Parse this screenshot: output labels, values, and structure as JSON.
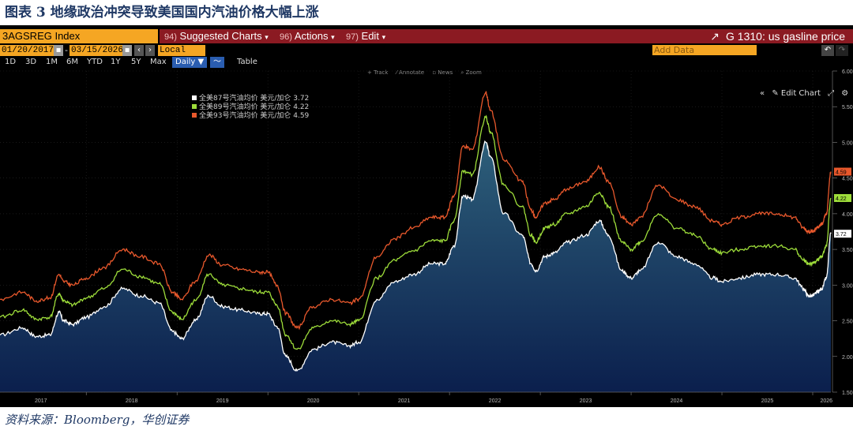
{
  "caption": "图表 3  地缘政治冲突导致美国国内汽油价格大幅上涨",
  "source": "资料来源：Bloomberg，华创证券",
  "terminal": {
    "ticker": "3AGSREG Index",
    "menus": [
      {
        "num": "94)",
        "label": "Suggested Charts",
        "arrow": "▾"
      },
      {
        "num": "96)",
        "label": "Actions",
        "arrow": "▾"
      },
      {
        "num": "97)",
        "label": "Edit",
        "arrow": "▾"
      }
    ],
    "graph_title": "G 1310: us gasline price",
    "start_date": "01/20/2017",
    "end_date": "03/15/2026",
    "currency": "Local CCY",
    "ranges": [
      "1D",
      "3D",
      "1M",
      "6M",
      "YTD",
      "1Y",
      "5Y",
      "Max"
    ],
    "daily": "Daily ▼",
    "table": "Table",
    "add_data": "Add Data",
    "edit_chart": "Edit Chart",
    "tools": [
      "+ Track",
      "⁄ Annotate",
      "▫ News",
      "⌕ Zoom"
    ]
  },
  "colors": {
    "s87": "#ffffff",
    "s89": "#9ddc3a",
    "s93": "#e8582c",
    "fill_top": "#2d5f7a",
    "fill_bottom": "#0b1f4d",
    "accent": "#f5a623",
    "titlebar": "#8b1a22"
  },
  "chart_data": {
    "type": "line",
    "x_ticks": [
      "2017",
      "2018",
      "2019",
      "2020",
      "2021",
      "2022",
      "2023",
      "2024",
      "2025",
      "2026"
    ],
    "y_ticks": [
      "1.50",
      "2.00",
      "2.50",
      "3.00",
      "3.50",
      "4.00",
      "4.50",
      "5.00",
      "5.50",
      "6.00"
    ],
    "ylim": [
      1.5,
      6.0
    ],
    "xlim": [
      2017.05,
      2026.2
    ],
    "legend_position": "top-left",
    "series": [
      {
        "name": "全美87号汽油均价 美元/加仑",
        "last_label": "3.72",
        "fill": true,
        "x": [
          2017.05,
          2017.3,
          2017.45,
          2017.6,
          2017.7,
          2017.75,
          2017.85,
          2018.0,
          2018.2,
          2018.4,
          2018.6,
          2018.8,
          2018.95,
          2019.05,
          2019.2,
          2019.35,
          2019.5,
          2019.7,
          2019.9,
          2020.0,
          2020.1,
          2020.2,
          2020.32,
          2020.5,
          2020.7,
          2020.9,
          2021.0,
          2021.2,
          2021.4,
          2021.6,
          2021.8,
          2021.95,
          2022.05,
          2022.15,
          2022.25,
          2022.4,
          2022.45,
          2022.6,
          2022.8,
          2022.9,
          2022.95,
          2023.05,
          2023.15,
          2023.3,
          2023.5,
          2023.65,
          2023.75,
          2023.9,
          2024.0,
          2024.1,
          2024.3,
          2024.5,
          2024.7,
          2024.9,
          2025.0,
          2025.2,
          2025.4,
          2025.6,
          2025.8,
          2025.9,
          2025.95,
          2026.0,
          2026.05,
          2026.1,
          2026.15,
          2026.2
        ],
        "y": [
          2.3,
          2.4,
          2.28,
          2.3,
          2.62,
          2.5,
          2.45,
          2.55,
          2.7,
          2.95,
          2.85,
          2.75,
          2.35,
          2.25,
          2.5,
          2.85,
          2.7,
          2.65,
          2.6,
          2.6,
          2.42,
          2.0,
          1.8,
          2.1,
          2.2,
          2.15,
          2.2,
          2.8,
          3.05,
          3.15,
          3.3,
          3.3,
          3.55,
          4.25,
          4.2,
          5.0,
          4.8,
          4.0,
          3.7,
          3.3,
          3.2,
          3.4,
          3.45,
          3.6,
          3.7,
          3.9,
          3.7,
          3.2,
          3.1,
          3.2,
          3.6,
          3.4,
          3.3,
          3.1,
          3.05,
          3.1,
          3.15,
          3.15,
          3.1,
          2.95,
          2.85,
          2.85,
          2.9,
          2.95,
          3.1,
          3.72
        ]
      },
      {
        "name": "全美89号汽油均价 美元/加仑",
        "last_label": "4.22",
        "x": [
          2017.05,
          2017.3,
          2017.45,
          2017.6,
          2017.7,
          2017.75,
          2017.85,
          2018.0,
          2018.2,
          2018.4,
          2018.6,
          2018.8,
          2018.95,
          2019.05,
          2019.2,
          2019.35,
          2019.5,
          2019.7,
          2019.9,
          2020.0,
          2020.1,
          2020.2,
          2020.32,
          2020.5,
          2020.7,
          2020.9,
          2021.0,
          2021.2,
          2021.4,
          2021.6,
          2021.8,
          2021.95,
          2022.05,
          2022.15,
          2022.25,
          2022.4,
          2022.45,
          2022.6,
          2022.8,
          2022.9,
          2022.95,
          2023.05,
          2023.15,
          2023.3,
          2023.5,
          2023.65,
          2023.75,
          2023.9,
          2024.0,
          2024.1,
          2024.3,
          2024.5,
          2024.7,
          2024.9,
          2025.0,
          2025.2,
          2025.4,
          2025.6,
          2025.8,
          2025.9,
          2025.95,
          2026.0,
          2026.05,
          2026.1,
          2026.15,
          2026.2
        ],
        "y": [
          2.55,
          2.65,
          2.52,
          2.55,
          2.88,
          2.78,
          2.72,
          2.82,
          2.95,
          3.22,
          3.12,
          3.02,
          2.62,
          2.52,
          2.78,
          3.15,
          3.0,
          2.95,
          2.9,
          2.9,
          2.72,
          2.3,
          2.1,
          2.4,
          2.5,
          2.45,
          2.5,
          3.1,
          3.35,
          3.48,
          3.62,
          3.62,
          3.9,
          4.6,
          4.55,
          5.35,
          5.15,
          4.4,
          4.1,
          3.7,
          3.6,
          3.8,
          3.85,
          4.0,
          4.1,
          4.3,
          4.1,
          3.6,
          3.5,
          3.6,
          4.0,
          3.8,
          3.7,
          3.5,
          3.45,
          3.5,
          3.55,
          3.55,
          3.5,
          3.35,
          3.3,
          3.3,
          3.35,
          3.4,
          3.55,
          4.22
        ]
      },
      {
        "name": "全美93号汽油均价 美元/加仑",
        "last_label": "4.59",
        "x": [
          2017.05,
          2017.3,
          2017.45,
          2017.6,
          2017.7,
          2017.75,
          2017.85,
          2018.0,
          2018.2,
          2018.4,
          2018.6,
          2018.8,
          2018.95,
          2019.05,
          2019.2,
          2019.35,
          2019.5,
          2019.7,
          2019.9,
          2020.0,
          2020.1,
          2020.2,
          2020.32,
          2020.5,
          2020.7,
          2020.9,
          2021.0,
          2021.2,
          2021.4,
          2021.6,
          2021.8,
          2021.95,
          2022.05,
          2022.15,
          2022.25,
          2022.4,
          2022.45,
          2022.6,
          2022.8,
          2022.9,
          2022.95,
          2023.05,
          2023.15,
          2023.3,
          2023.5,
          2023.65,
          2023.75,
          2023.9,
          2024.0,
          2024.1,
          2024.3,
          2024.5,
          2024.7,
          2024.9,
          2025.0,
          2025.2,
          2025.4,
          2025.6,
          2025.8,
          2025.9,
          2025.95,
          2026.0,
          2026.05,
          2026.1,
          2026.15,
          2026.2
        ],
        "y": [
          2.8,
          2.9,
          2.78,
          2.82,
          3.15,
          3.05,
          3.0,
          3.1,
          3.25,
          3.5,
          3.4,
          3.3,
          2.9,
          2.8,
          3.05,
          3.42,
          3.28,
          3.22,
          3.18,
          3.18,
          3.0,
          2.6,
          2.4,
          2.7,
          2.8,
          2.75,
          2.8,
          3.4,
          3.65,
          3.8,
          3.95,
          3.95,
          4.25,
          4.95,
          4.9,
          5.7,
          5.45,
          4.75,
          4.45,
          4.05,
          3.95,
          4.15,
          4.2,
          4.35,
          4.45,
          4.65,
          4.45,
          3.95,
          3.85,
          3.95,
          4.4,
          4.2,
          4.1,
          3.9,
          3.85,
          3.95,
          4.0,
          4.0,
          3.95,
          3.8,
          3.75,
          3.75,
          3.8,
          3.85,
          4.0,
          4.59
        ]
      }
    ]
  }
}
